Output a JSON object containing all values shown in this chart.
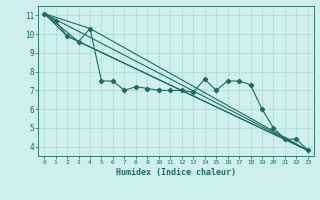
{
  "xlabel": "Humidex (Indice chaleur)",
  "ylabel": "",
  "bg_color": "#cff0ea",
  "grid_color": "#aad8d0",
  "line_color": "#1a6b60",
  "xlim": [
    -0.5,
    23.5
  ],
  "ylim": [
    3.5,
    11.5
  ],
  "xticks": [
    0,
    1,
    2,
    3,
    4,
    5,
    6,
    7,
    8,
    9,
    10,
    11,
    12,
    13,
    14,
    15,
    16,
    17,
    18,
    19,
    20,
    21,
    22,
    23
  ],
  "yticks": [
    4,
    5,
    6,
    7,
    8,
    9,
    10,
    11
  ],
  "series": [
    [
      0,
      11.1
    ],
    [
      1,
      10.7
    ],
    [
      2,
      9.9
    ],
    [
      3,
      9.6
    ],
    [
      4,
      10.3
    ],
    [
      5,
      7.5
    ],
    [
      6,
      7.5
    ],
    [
      7,
      7.0
    ],
    [
      8,
      7.2
    ],
    [
      9,
      7.1
    ],
    [
      10,
      7.0
    ],
    [
      11,
      7.0
    ],
    [
      12,
      7.0
    ],
    [
      13,
      6.9
    ],
    [
      14,
      7.6
    ],
    [
      15,
      7.0
    ],
    [
      16,
      7.5
    ],
    [
      17,
      7.5
    ],
    [
      18,
      7.3
    ],
    [
      19,
      6.0
    ],
    [
      20,
      5.0
    ],
    [
      21,
      4.4
    ],
    [
      22,
      4.4
    ],
    [
      23,
      3.8
    ]
  ],
  "lines": [
    {
      "x": [
        0,
        4,
        23
      ],
      "y": [
        11.1,
        10.3,
        3.8
      ]
    },
    {
      "x": [
        0,
        3,
        23
      ],
      "y": [
        11.1,
        9.6,
        3.8
      ]
    },
    {
      "x": [
        0,
        2,
        23
      ],
      "y": [
        11.1,
        9.9,
        3.8
      ]
    },
    {
      "x": [
        0,
        23
      ],
      "y": [
        11.1,
        3.8
      ]
    }
  ]
}
